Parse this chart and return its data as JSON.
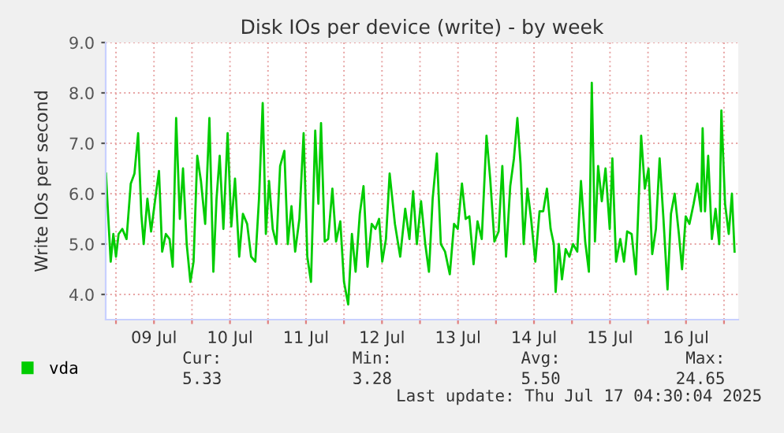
{
  "chart_data": {
    "type": "line",
    "title": "Disk IOs per device (write) - by week",
    "ylabel": "Write IOs per second",
    "x": [
      "2025-07-08T20:50",
      "2025-07-08T21:30",
      "2025-07-08T22:20",
      "2025-07-08T23:10",
      "2025-07-09T00:00",
      "2025-07-09T00:50",
      "2025-07-09T02:00",
      "2025-07-09T03:20",
      "2025-07-09T04:40",
      "2025-07-09T05:50",
      "2025-07-09T07:00",
      "2025-07-09T08:00",
      "2025-07-09T08:45",
      "2025-07-09T09:55",
      "2025-07-09T11:05",
      "2025-07-09T12:25",
      "2025-07-09T13:35",
      "2025-07-09T14:35",
      "2025-07-09T15:45",
      "2025-07-09T16:55",
      "2025-07-09T17:55",
      "2025-07-09T19:00",
      "2025-07-09T20:10",
      "2025-07-09T21:10",
      "2025-07-09T22:20",
      "2025-07-09T23:30",
      "2025-07-10T00:30",
      "2025-07-10T01:40",
      "2025-07-10T02:50",
      "2025-07-10T04:10",
      "2025-07-10T05:30",
      "2025-07-10T06:45",
      "2025-07-10T07:45",
      "2025-07-10T08:45",
      "2025-07-10T09:55",
      "2025-07-10T11:15",
      "2025-07-10T12:25",
      "2025-07-10T13:35",
      "2025-07-10T14:55",
      "2025-07-10T16:05",
      "2025-07-10T17:25",
      "2025-07-10T18:40",
      "2025-07-10T20:00",
      "2025-07-10T21:10",
      "2025-07-10T22:20",
      "2025-07-10T23:20",
      "2025-07-11T00:20",
      "2025-07-11T01:30",
      "2025-07-11T02:40",
      "2025-07-11T03:50",
      "2025-07-11T05:10",
      "2025-07-11T06:15",
      "2025-07-11T07:25",
      "2025-07-11T08:35",
      "2025-07-11T09:55",
      "2025-07-11T11:15",
      "2025-07-11T12:25",
      "2025-07-11T13:35",
      "2025-07-11T14:55",
      "2025-07-11T15:55",
      "2025-07-11T16:45",
      "2025-07-11T17:55",
      "2025-07-11T19:00",
      "2025-07-11T20:20",
      "2025-07-11T21:30",
      "2025-07-11T22:50",
      "2025-07-12T00:00",
      "2025-07-12T01:20",
      "2025-07-12T02:30",
      "2025-07-12T03:40",
      "2025-07-12T05:00",
      "2025-07-12T06:10",
      "2025-07-12T07:25",
      "2025-07-12T08:45",
      "2025-07-12T09:55",
      "2025-07-12T11:05",
      "2025-07-12T12:05",
      "2025-07-12T13:15",
      "2025-07-12T14:25",
      "2025-07-12T15:45",
      "2025-07-12T16:05",
      "2025-07-12T17:45",
      "2025-07-12T19:20",
      "2025-07-12T20:40",
      "2025-07-12T21:50",
      "2025-07-12T23:00",
      "2025-07-13T00:20",
      "2025-07-13T01:40",
      "2025-07-13T02:50",
      "2025-07-13T04:00",
      "2025-07-13T05:20",
      "2025-07-13T06:35",
      "2025-07-13T07:55",
      "2025-07-13T09:25",
      "2025-07-13T10:45",
      "2025-07-13T11:55",
      "2025-07-13T13:15",
      "2025-07-13T14:25",
      "2025-07-13T15:35",
      "2025-07-13T16:55",
      "2025-07-13T18:10",
      "2025-07-13T19:30",
      "2025-07-13T21:00",
      "2025-07-13T22:10",
      "2025-07-13T23:30",
      "2025-07-14T00:50",
      "2025-07-14T02:00",
      "2025-07-14T03:10",
      "2025-07-14T04:30",
      "2025-07-14T05:40",
      "2025-07-14T06:45",
      "2025-07-14T07:45",
      "2025-07-14T08:45",
      "2025-07-14T09:55",
      "2025-07-14T11:05",
      "2025-07-14T12:25",
      "2025-07-14T13:45",
      "2025-07-14T14:55",
      "2025-07-14T16:05",
      "2025-07-14T17:15",
      "2025-07-14T18:15",
      "2025-07-14T18:50",
      "2025-07-14T19:50",
      "2025-07-14T20:50",
      "2025-07-14T22:00",
      "2025-07-14T23:10",
      "2025-07-15T00:20",
      "2025-07-15T01:40",
      "2025-07-15T02:50",
      "2025-07-15T04:10",
      "2025-07-15T05:20",
      "2025-07-15T06:15",
      "2025-07-15T07:15",
      "2025-07-15T08:15",
      "2025-07-15T09:25",
      "2025-07-15T10:35",
      "2025-07-15T11:55",
      "2025-07-15T12:45",
      "2025-07-15T13:55",
      "2025-07-15T15:15",
      "2025-07-15T16:25",
      "2025-07-15T17:25",
      "2025-07-15T18:50",
      "2025-07-15T20:10",
      "2025-07-15T21:50",
      "2025-07-15T23:00",
      "2025-07-16T00:10",
      "2025-07-16T01:20",
      "2025-07-16T02:30",
      "2025-07-16T03:40",
      "2025-07-16T04:50",
      "2025-07-16T06:10",
      "2025-07-16T07:15",
      "2025-07-16T08:25",
      "2025-07-16T09:45",
      "2025-07-16T10:45",
      "2025-07-16T11:55",
      "2025-07-16T13:05",
      "2025-07-16T14:25",
      "2025-07-16T15:35",
      "2025-07-16T16:45",
      "2025-07-16T17:15",
      "2025-07-16T18:00",
      "2025-07-16T19:00",
      "2025-07-16T20:10",
      "2025-07-16T21:20",
      "2025-07-16T22:30",
      "2025-07-16T23:10",
      "2025-07-17T00:20",
      "2025-07-17T01:30",
      "2025-07-17T02:30",
      "2025-07-17T03:20"
    ],
    "series": [
      {
        "name": "vda",
        "color": "#00cc00",
        "values": [
          6.4,
          5.6,
          4.65,
          5.2,
          4.75,
          5.2,
          5.3,
          5.1,
          6.2,
          6.4,
          7.2,
          5.6,
          5.0,
          5.9,
          5.25,
          5.9,
          6.45,
          4.85,
          5.2,
          5.1,
          4.55,
          7.5,
          5.5,
          6.5,
          5.0,
          4.25,
          4.65,
          6.75,
          6.25,
          5.4,
          7.5,
          4.45,
          5.9,
          6.75,
          5.3,
          7.2,
          5.35,
          6.3,
          4.75,
          5.6,
          5.4,
          4.75,
          4.65,
          5.9,
          7.8,
          5.2,
          6.25,
          5.3,
          5.0,
          6.55,
          6.85,
          5.0,
          5.75,
          4.85,
          5.5,
          7.2,
          4.75,
          4.25,
          7.25,
          5.8,
          7.4,
          5.05,
          5.1,
          6.1,
          5.05,
          5.45,
          4.25,
          3.8,
          5.2,
          4.45,
          5.6,
          6.15,
          4.55,
          5.4,
          5.3,
          5.5,
          4.65,
          5.1,
          6.4,
          5.6,
          5.4,
          4.75,
          5.7,
          5.1,
          6.05,
          5.0,
          5.85,
          5.0,
          4.45,
          5.9,
          6.8,
          5.0,
          4.85,
          4.4,
          5.4,
          5.3,
          6.2,
          5.5,
          5.55,
          4.6,
          5.45,
          5.1,
          7.15,
          6.3,
          5.05,
          5.25,
          6.55,
          4.75,
          6.15,
          6.7,
          7.5,
          6.6,
          5.0,
          6.1,
          5.5,
          4.65,
          5.65,
          5.65,
          6.1,
          5.3,
          5.0,
          4.05,
          5.0,
          4.3,
          4.9,
          4.75,
          5.0,
          4.85,
          6.25,
          5.05,
          4.45,
          8.2,
          5.05,
          6.55,
          5.85,
          6.5,
          5.3,
          6.7,
          4.65,
          5.1,
          4.65,
          5.25,
          5.2,
          4.4,
          7.15,
          6.1,
          6.5,
          4.8,
          5.3,
          6.7,
          5.55,
          4.1,
          5.6,
          6.0,
          5.2,
          4.5,
          5.55,
          5.4,
          5.8,
          6.2,
          5.65,
          7.3,
          5.65,
          6.75,
          5.1,
          5.7,
          5.0,
          7.65,
          5.8,
          5.2,
          6.0,
          4.85
        ]
      }
    ],
    "xlim": [
      "2025-07-08T20:45",
      "2025-07-17T04:30"
    ],
    "xticks": [
      {
        "value": "2025-07-09T00:00",
        "label": null
      },
      {
        "value": "2025-07-09T12:00",
        "label": "09 Jul"
      },
      {
        "value": "2025-07-10T00:00",
        "label": null
      },
      {
        "value": "2025-07-10T12:00",
        "label": "10 Jul"
      },
      {
        "value": "2025-07-11T00:00",
        "label": null
      },
      {
        "value": "2025-07-11T12:00",
        "label": "11 Jul"
      },
      {
        "value": "2025-07-12T00:00",
        "label": null
      },
      {
        "value": "2025-07-12T12:00",
        "label": "12 Jul"
      },
      {
        "value": "2025-07-13T00:00",
        "label": null
      },
      {
        "value": "2025-07-13T12:00",
        "label": "13 Jul"
      },
      {
        "value": "2025-07-14T00:00",
        "label": null
      },
      {
        "value": "2025-07-14T12:00",
        "label": "14 Jul"
      },
      {
        "value": "2025-07-15T00:00",
        "label": null
      },
      {
        "value": "2025-07-15T12:00",
        "label": "15 Jul"
      },
      {
        "value": "2025-07-16T00:00",
        "label": null
      },
      {
        "value": "2025-07-16T12:00",
        "label": "16 Jul"
      },
      {
        "value": "2025-07-17T00:00",
        "label": null
      }
    ],
    "ylim": [
      3.5,
      9.0
    ],
    "yticks": [
      {
        "value": 4,
        "label": "4.0"
      },
      {
        "value": 5,
        "label": "5.0"
      },
      {
        "value": 6,
        "label": "6.0"
      },
      {
        "value": 7,
        "label": "7.0"
      },
      {
        "value": 8,
        "label": "8.0"
      },
      {
        "value": 9,
        "label": "9.0"
      }
    ],
    "grid": true,
    "legend": "bottom left",
    "annotations": [
      "Cur:",
      "5.33",
      "Min:",
      "3.28",
      "Avg:",
      "5.50",
      "Max:",
      "24.65",
      "Last update: Thu Jul 17 04:30:04 2025"
    ]
  }
}
